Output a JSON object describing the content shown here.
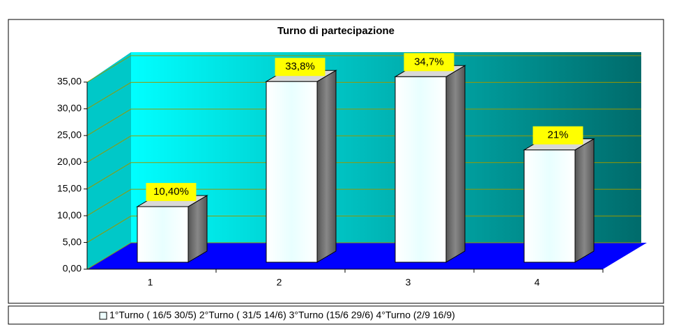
{
  "chart_data": {
    "type": "bar3d",
    "title": "Turno di partecipazione",
    "categories": [
      "1",
      "2",
      "3",
      "4"
    ],
    "series": [
      {
        "name": "1°Turno ( 16/5  30/5) 2°Turno ( 31/5  14/6) 3°Turno (15/6 29/6) 4°Turno (2/9 16/9)",
        "color": "#eeffff",
        "values": [
          10.4,
          33.8,
          34.7,
          21
        ],
        "value_labels": [
          "10,40%",
          "33,8%",
          "34,7%",
          "21%"
        ]
      }
    ],
    "ylim": [
      0,
      35
    ],
    "yticks": [
      {
        "value": 0,
        "label": "0,00"
      },
      {
        "value": 5,
        "label": "5,00"
      },
      {
        "value": 10,
        "label": "10,00"
      },
      {
        "value": 15,
        "label": "15,00"
      },
      {
        "value": 20,
        "label": "20,00"
      },
      {
        "value": 25,
        "label": "25,00"
      },
      {
        "value": 30,
        "label": "30,00"
      },
      {
        "value": 35,
        "label": "35,00"
      }
    ],
    "grid": true
  }
}
